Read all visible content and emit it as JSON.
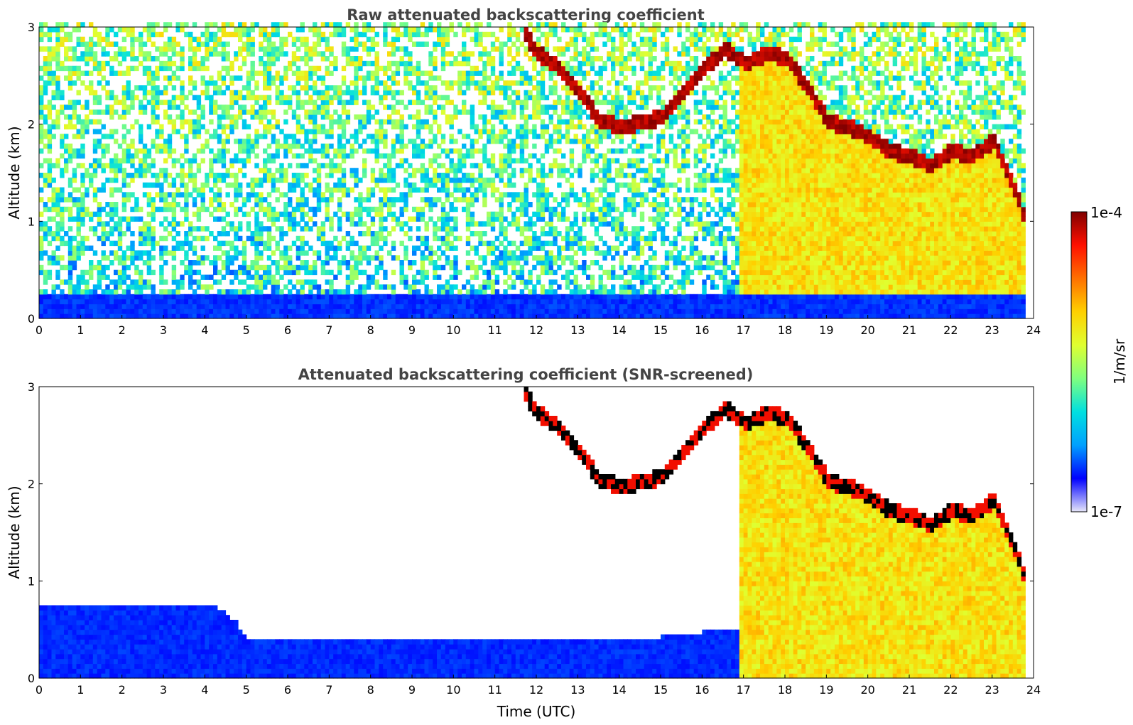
{
  "chart_data": [
    {
      "type": "heatmap",
      "title": "Raw attenuated backscattering coefficient",
      "xlabel": "",
      "ylabel": "Altitude (km)",
      "xlim": [
        0,
        24
      ],
      "ylim": [
        0,
        3
      ],
      "xticks": [
        0,
        1,
        2,
        3,
        4,
        5,
        6,
        7,
        8,
        9,
        10,
        11,
        12,
        13,
        14,
        15,
        16,
        17,
        18,
        19,
        20,
        21,
        22,
        23,
        24
      ],
      "yticks": [
        0,
        1,
        2,
        3
      ],
      "data_end_time": 23.8,
      "colorscale": "jet",
      "log_scale": true,
      "features": {
        "boundary_layer_aerosol_top_km": 0.25,
        "cloud_base_track_km": [
          {
            "t": 11.6,
            "z": 2.95
          },
          {
            "t": 12.0,
            "z": 2.7
          },
          {
            "t": 12.5,
            "z": 2.55
          },
          {
            "t": 13.0,
            "z": 2.3
          },
          {
            "t": 13.5,
            "z": 2.0
          },
          {
            "t": 14.0,
            "z": 1.95
          },
          {
            "t": 14.5,
            "z": 2.0
          },
          {
            "t": 15.0,
            "z": 2.05
          },
          {
            "t": 15.5,
            "z": 2.3
          },
          {
            "t": 16.0,
            "z": 2.55
          },
          {
            "t": 16.5,
            "z": 2.75
          },
          {
            "t": 17.0,
            "z": 2.6
          },
          {
            "t": 17.5,
            "z": 2.7
          },
          {
            "t": 18.0,
            "z": 2.65
          },
          {
            "t": 18.5,
            "z": 2.35
          },
          {
            "t": 19.0,
            "z": 2.0
          },
          {
            "t": 19.5,
            "z": 1.95
          },
          {
            "t": 20.0,
            "z": 1.85
          },
          {
            "t": 20.5,
            "z": 1.7
          },
          {
            "t": 21.0,
            "z": 1.65
          },
          {
            "t": 21.5,
            "z": 1.55
          },
          {
            "t": 22.0,
            "z": 1.7
          },
          {
            "t": 22.5,
            "z": 1.65
          },
          {
            "t": 23.0,
            "z": 1.8
          },
          {
            "t": 23.5,
            "z": 1.3
          },
          {
            "t": 23.8,
            "z": 0.95
          }
        ]
      }
    },
    {
      "type": "heatmap",
      "title": "Attenuated backscattering coefficient (SNR-screened)",
      "xlabel": "Time (UTC)",
      "ylabel": "Altitude (km)",
      "xlim": [
        0,
        24
      ],
      "ylim": [
        0,
        3
      ],
      "xticks": [
        0,
        1,
        2,
        3,
        4,
        5,
        6,
        7,
        8,
        9,
        10,
        11,
        12,
        13,
        14,
        15,
        16,
        17,
        18,
        19,
        20,
        21,
        22,
        23,
        24
      ],
      "yticks": [
        0,
        1,
        2,
        3
      ],
      "data_end_time": 23.8,
      "colorscale": "jet",
      "log_scale": true,
      "features": {
        "screened_aerosol_layer_top_km": [
          {
            "t": 0,
            "z": 0.75
          },
          {
            "t": 4.3,
            "z": 0.7
          },
          {
            "t": 4.7,
            "z": 0.55
          },
          {
            "t": 5.0,
            "z": 0.38
          },
          {
            "t": 13.7,
            "z": 0.35
          },
          {
            "t": 15.5,
            "z": 0.42
          },
          {
            "t": 16.8,
            "z": 0.5
          }
        ]
      }
    }
  ],
  "colorbar": {
    "label": "1/m/sr",
    "max_label": "1e-4",
    "min_label": "1e-7",
    "range": [
      1e-07,
      0.0001
    ],
    "colors": [
      "#e6e6fa",
      "#0000ff",
      "#00a0ff",
      "#00e0e0",
      "#7fff7f",
      "#e0ff30",
      "#ffd000",
      "#ff7000",
      "#ff1000",
      "#800000"
    ]
  }
}
